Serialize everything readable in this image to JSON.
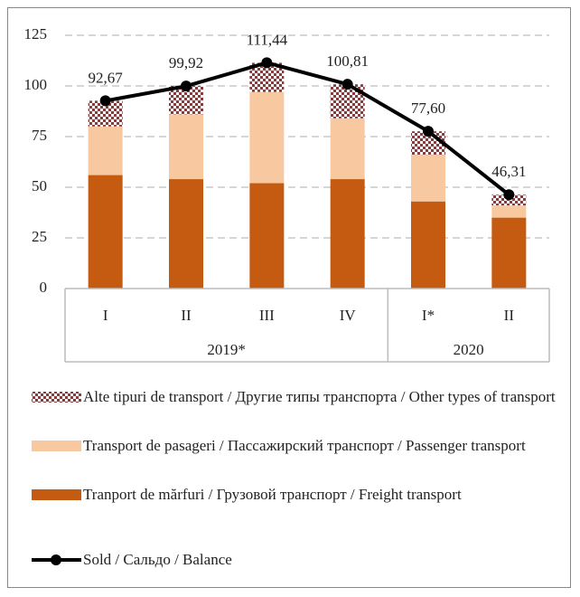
{
  "chart_data": {
    "type": "bar",
    "categories": [
      "I",
      "II",
      "III",
      "IV",
      "I*",
      "II"
    ],
    "groups": [
      {
        "name": "2019*",
        "count": 4
      },
      {
        "name": "2020",
        "count": 2
      }
    ],
    "ylim": [
      0,
      125
    ],
    "yticks": [
      0,
      25,
      50,
      75,
      100,
      125
    ],
    "grid": true,
    "series": [
      {
        "name": "Tranport de mărfuri / Грузовой транспорт / Freight transport",
        "color": "#c55a11",
        "values": [
          56,
          54,
          52,
          54,
          43,
          35
        ]
      },
      {
        "name": "Transport de pasageri / Пассажирский транспорт / Passenger transport",
        "color": "#f8c9a0",
        "values": [
          24,
          32,
          45,
          30,
          23,
          6
        ]
      },
      {
        "name": "Alte tipuri de transport / Другие типы транспорта / Other types of transport",
        "color": "#843c3c",
        "pattern": "checker",
        "values": [
          12.7,
          14,
          14.4,
          16.8,
          11.6,
          5.3
        ]
      },
      {
        "name": "Sold / Сальдо / Balance",
        "type": "line",
        "color": "#000000",
        "values": [
          92.67,
          99.92,
          111.44,
          100.81,
          77.6,
          46.31
        ],
        "value_labels": [
          "92,67",
          "99,92",
          "111,44",
          "100,81",
          "77,60",
          "46,31"
        ]
      }
    ]
  }
}
